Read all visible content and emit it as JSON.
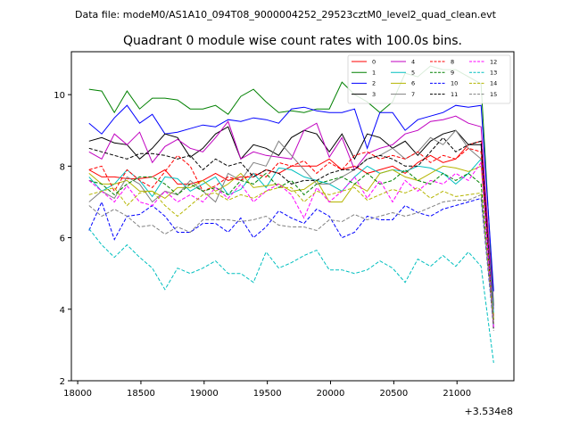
{
  "chart_data": {
    "type": "line",
    "supertitle": "Data file: modeM0/AS1A10_094T08_9000004252_29523cztM0_level2_quad_clean.evt",
    "title": "Quadrant 0 module wise count rates with 100.0s bins.",
    "xlabel": "",
    "ylabel": "",
    "x_offset_label": "+3.534e8",
    "xlim": [
      17950,
      21450
    ],
    "ylim": [
      2,
      11.2
    ],
    "xticks": [
      18000,
      18500,
      19000,
      19500,
      20000,
      20500,
      21000
    ],
    "yticks": [
      2,
      4,
      6,
      8,
      10
    ],
    "legend_position": "top-right",
    "x": [
      18090,
      18190,
      18290,
      18390,
      18490,
      18590,
      18690,
      18790,
      18890,
      18990,
      19090,
      19190,
      19290,
      19390,
      19490,
      19590,
      19690,
      19790,
      19890,
      19990,
      20090,
      20190,
      20290,
      20390,
      20490,
      20590,
      20690,
      20790,
      20890,
      20990,
      21090,
      21190,
      21290
    ],
    "series": [
      {
        "name": "0",
        "color": "#ff0000",
        "dash": "solid",
        "values": [
          7.9,
          7.7,
          7.7,
          7.65,
          7.65,
          7.7,
          7.9,
          7.5,
          7.5,
          7.6,
          7.8,
          7.6,
          7.7,
          7.7,
          7.9,
          7.8,
          8.0,
          8.0,
          8.0,
          8.2,
          7.9,
          8.0,
          7.8,
          7.9,
          8.0,
          7.8,
          8.1,
          8.3,
          8.1,
          8.2,
          8.6,
          8.7,
          3.8
        ]
      },
      {
        "name": "1",
        "color": "#008000",
        "dash": "solid",
        "values": [
          10.15,
          10.1,
          9.5,
          10.1,
          9.6,
          9.9,
          9.9,
          9.85,
          9.6,
          9.6,
          9.7,
          9.45,
          9.95,
          10.15,
          9.8,
          9.5,
          9.55,
          9.5,
          9.6,
          9.6,
          10.35,
          10.0,
          9.8,
          9.5,
          9.8,
          10.6,
          10.5,
          10.8,
          10.7,
          10.7,
          10.5,
          10.3,
          4.1
        ]
      },
      {
        "name": "2",
        "color": "#0000ff",
        "dash": "solid",
        "values": [
          9.2,
          8.9,
          9.35,
          9.7,
          9.2,
          9.45,
          8.9,
          8.95,
          9.05,
          9.15,
          9.1,
          9.3,
          9.25,
          9.35,
          9.3,
          9.2,
          9.6,
          9.65,
          9.55,
          9.5,
          9.5,
          9.6,
          8.5,
          9.5,
          9.5,
          9.0,
          9.3,
          9.4,
          9.5,
          9.7,
          9.65,
          9.7,
          4.5
        ]
      },
      {
        "name": "3",
        "color": "#000000",
        "dash": "solid",
        "values": [
          8.7,
          8.8,
          8.65,
          8.6,
          8.2,
          8.5,
          8.9,
          8.8,
          8.25,
          8.5,
          8.9,
          9.1,
          8.2,
          8.6,
          8.5,
          8.3,
          8.8,
          9.0,
          8.9,
          8.4,
          8.9,
          8.2,
          8.9,
          8.8,
          8.5,
          8.7,
          8.3,
          8.7,
          8.9,
          9.0,
          8.6,
          8.6,
          3.7
        ]
      },
      {
        "name": "4",
        "color": "#c000c0",
        "dash": "solid",
        "values": [
          8.4,
          8.2,
          8.9,
          8.6,
          8.95,
          8.1,
          8.55,
          8.75,
          8.5,
          8.4,
          8.8,
          9.25,
          8.2,
          8.4,
          8.3,
          8.25,
          8.2,
          9.0,
          9.2,
          8.25,
          8.8,
          7.9,
          8.35,
          8.5,
          8.6,
          8.9,
          9.0,
          9.25,
          9.3,
          9.4,
          9.2,
          9.1,
          4.0
        ]
      },
      {
        "name": "5",
        "color": "#00bfbf",
        "dash": "solid",
        "values": [
          7.7,
          7.3,
          7.5,
          7.9,
          7.6,
          7.15,
          7.7,
          7.65,
          7.3,
          7.5,
          7.7,
          7.2,
          7.35,
          7.8,
          7.4,
          7.95,
          7.9,
          7.7,
          7.6,
          7.5,
          7.3,
          7.7,
          8.0,
          7.8,
          7.9,
          7.85,
          8.0,
          7.95,
          7.8,
          7.5,
          7.8,
          8.2,
          3.9
        ]
      },
      {
        "name": "6",
        "color": "#b5b500",
        "dash": "solid",
        "values": [
          7.8,
          7.5,
          7.5,
          7.6,
          7.3,
          7.3,
          7.1,
          7.4,
          7.4,
          7.6,
          7.3,
          7.5,
          7.8,
          7.4,
          7.45,
          7.5,
          7.3,
          7.35,
          7.6,
          7.0,
          7.0,
          7.5,
          7.3,
          7.8,
          7.9,
          7.7,
          7.6,
          7.8,
          8.0,
          7.95,
          7.85,
          8.0,
          3.7
        ]
      },
      {
        "name": "7",
        "color": "#808080",
        "dash": "solid",
        "values": [
          7.0,
          7.3,
          7.1,
          7.7,
          7.5,
          7.0,
          7.3,
          7.2,
          7.6,
          7.3,
          7.0,
          7.8,
          7.6,
          8.1,
          8.0,
          8.7,
          8.3,
          7.9,
          7.5,
          7.5,
          7.7,
          7.9,
          8.2,
          8.3,
          8.5,
          8.2,
          8.4,
          8.8,
          8.6,
          9.0,
          8.5,
          8.2,
          3.6
        ]
      },
      {
        "name": "8",
        "color": "#ff0000",
        "dash": "dashed",
        "values": [
          7.9,
          8.0,
          7.3,
          7.9,
          7.6,
          7.4,
          7.85,
          8.3,
          8.0,
          7.3,
          7.45,
          7.7,
          7.6,
          7.8,
          7.7,
          8.1,
          8.0,
          8.15,
          7.8,
          8.1,
          7.9,
          8.3,
          8.4,
          8.2,
          8.3,
          8.2,
          8.4,
          8.1,
          8.3,
          8.2,
          8.5,
          8.4,
          3.5
        ]
      },
      {
        "name": "9",
        "color": "#008000",
        "dash": "dashed",
        "values": [
          7.6,
          7.5,
          7.2,
          7.5,
          7.7,
          7.7,
          7.5,
          7.2,
          7.5,
          7.3,
          7.4,
          7.2,
          7.6,
          7.5,
          7.8,
          7.4,
          7.6,
          7.2,
          7.5,
          7.6,
          7.7,
          7.5,
          7.8,
          7.5,
          7.6,
          7.9,
          7.6,
          7.5,
          7.8,
          7.6,
          7.8,
          7.5,
          3.6
        ]
      },
      {
        "name": "10",
        "color": "#0000ff",
        "dash": "dashed",
        "values": [
          6.2,
          7.0,
          5.95,
          6.6,
          6.65,
          6.9,
          6.6,
          6.15,
          6.15,
          6.4,
          6.4,
          6.15,
          6.55,
          6.0,
          6.3,
          6.75,
          6.55,
          6.4,
          6.8,
          6.6,
          6.0,
          6.15,
          6.6,
          6.5,
          6.5,
          6.9,
          6.7,
          6.6,
          6.8,
          6.9,
          7.0,
          7.1,
          3.5
        ]
      },
      {
        "name": "11",
        "color": "#000000",
        "dash": "dashed",
        "values": [
          8.5,
          8.4,
          8.3,
          8.2,
          8.35,
          8.35,
          8.3,
          8.2,
          8.3,
          7.9,
          8.2,
          8.0,
          8.1,
          7.7,
          7.9,
          7.8,
          7.5,
          7.6,
          7.6,
          7.8,
          7.9,
          7.9,
          8.2,
          8.3,
          8.2,
          8.0,
          8.0,
          8.4,
          8.8,
          8.4,
          8.6,
          8.7,
          3.4
        ]
      },
      {
        "name": "12",
        "color": "#ff00ff",
        "dash": "dashed",
        "values": [
          7.6,
          7.3,
          7.0,
          7.45,
          7.0,
          6.9,
          7.3,
          7.0,
          7.2,
          7.0,
          7.4,
          7.1,
          7.5,
          7.0,
          7.3,
          7.5,
          7.2,
          6.55,
          7.4,
          7.0,
          7.3,
          7.7,
          7.1,
          7.6,
          7.0,
          7.6,
          7.3,
          7.6,
          7.5,
          7.8,
          7.6,
          8.1,
          3.5
        ]
      },
      {
        "name": "13",
        "color": "#00bfbf",
        "dash": "dashed",
        "values": [
          6.25,
          5.8,
          5.45,
          5.8,
          5.45,
          5.15,
          4.55,
          5.15,
          5.0,
          5.15,
          5.35,
          5.0,
          5.0,
          4.75,
          5.6,
          5.15,
          5.3,
          5.5,
          5.65,
          5.1,
          5.1,
          5.0,
          5.1,
          5.35,
          5.15,
          4.75,
          5.4,
          5.2,
          5.5,
          5.2,
          5.6,
          5.2,
          2.5
        ]
      },
      {
        "name": "14",
        "color": "#b5b500",
        "dash": "dashed",
        "values": [
          7.2,
          7.3,
          7.4,
          6.9,
          7.25,
          7.3,
          6.9,
          6.6,
          6.9,
          7.2,
          7.25,
          7.05,
          7.2,
          7.1,
          7.3,
          7.4,
          7.4,
          7.0,
          7.3,
          7.2,
          7.3,
          7.4,
          7.05,
          7.2,
          7.35,
          7.25,
          7.4,
          7.1,
          7.3,
          7.15,
          7.2,
          7.25,
          3.6
        ]
      },
      {
        "name": "15",
        "color": "#808080",
        "dash": "dashed",
        "values": [
          6.9,
          6.6,
          6.8,
          6.6,
          6.3,
          6.35,
          6.1,
          6.3,
          6.15,
          6.5,
          6.5,
          6.5,
          6.45,
          6.5,
          6.6,
          6.35,
          6.3,
          6.3,
          6.2,
          6.5,
          6.45,
          6.65,
          6.5,
          6.6,
          6.7,
          6.6,
          6.7,
          6.85,
          7.0,
          7.05,
          7.05,
          7.2,
          3.6
        ]
      }
    ]
  }
}
